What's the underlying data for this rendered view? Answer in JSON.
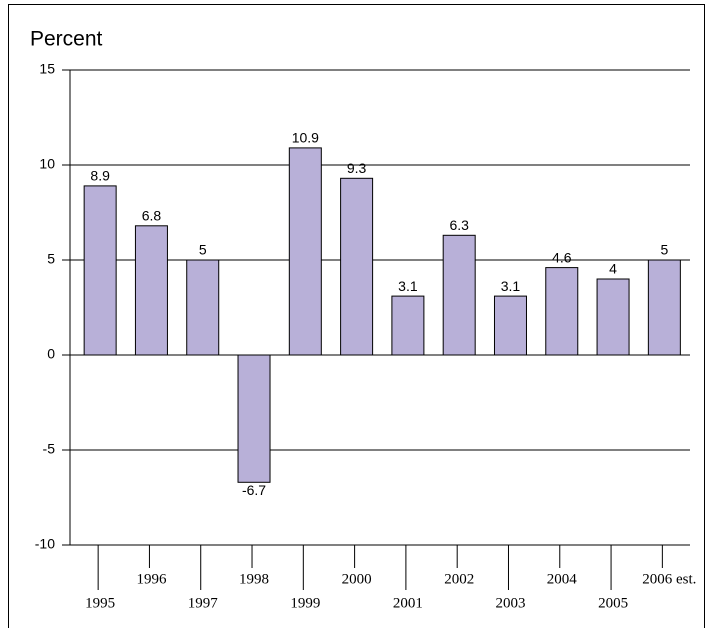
{
  "chart_data": {
    "type": "bar",
    "title": "Percent",
    "categories": [
      "1995",
      "1996",
      "1997",
      "1998",
      "1999",
      "2000",
      "2001",
      "2002",
      "2003",
      "2004",
      "2005",
      "2006 est."
    ],
    "values": [
      8.9,
      6.8,
      5,
      -6.7,
      10.9,
      9.3,
      3.1,
      6.3,
      3.1,
      4.6,
      4,
      5
    ],
    "color": "#b8b0d8",
    "ylim": [
      -10,
      15
    ],
    "yticks": [
      -10,
      -5,
      0,
      5,
      10,
      15
    ],
    "grid": true
  }
}
